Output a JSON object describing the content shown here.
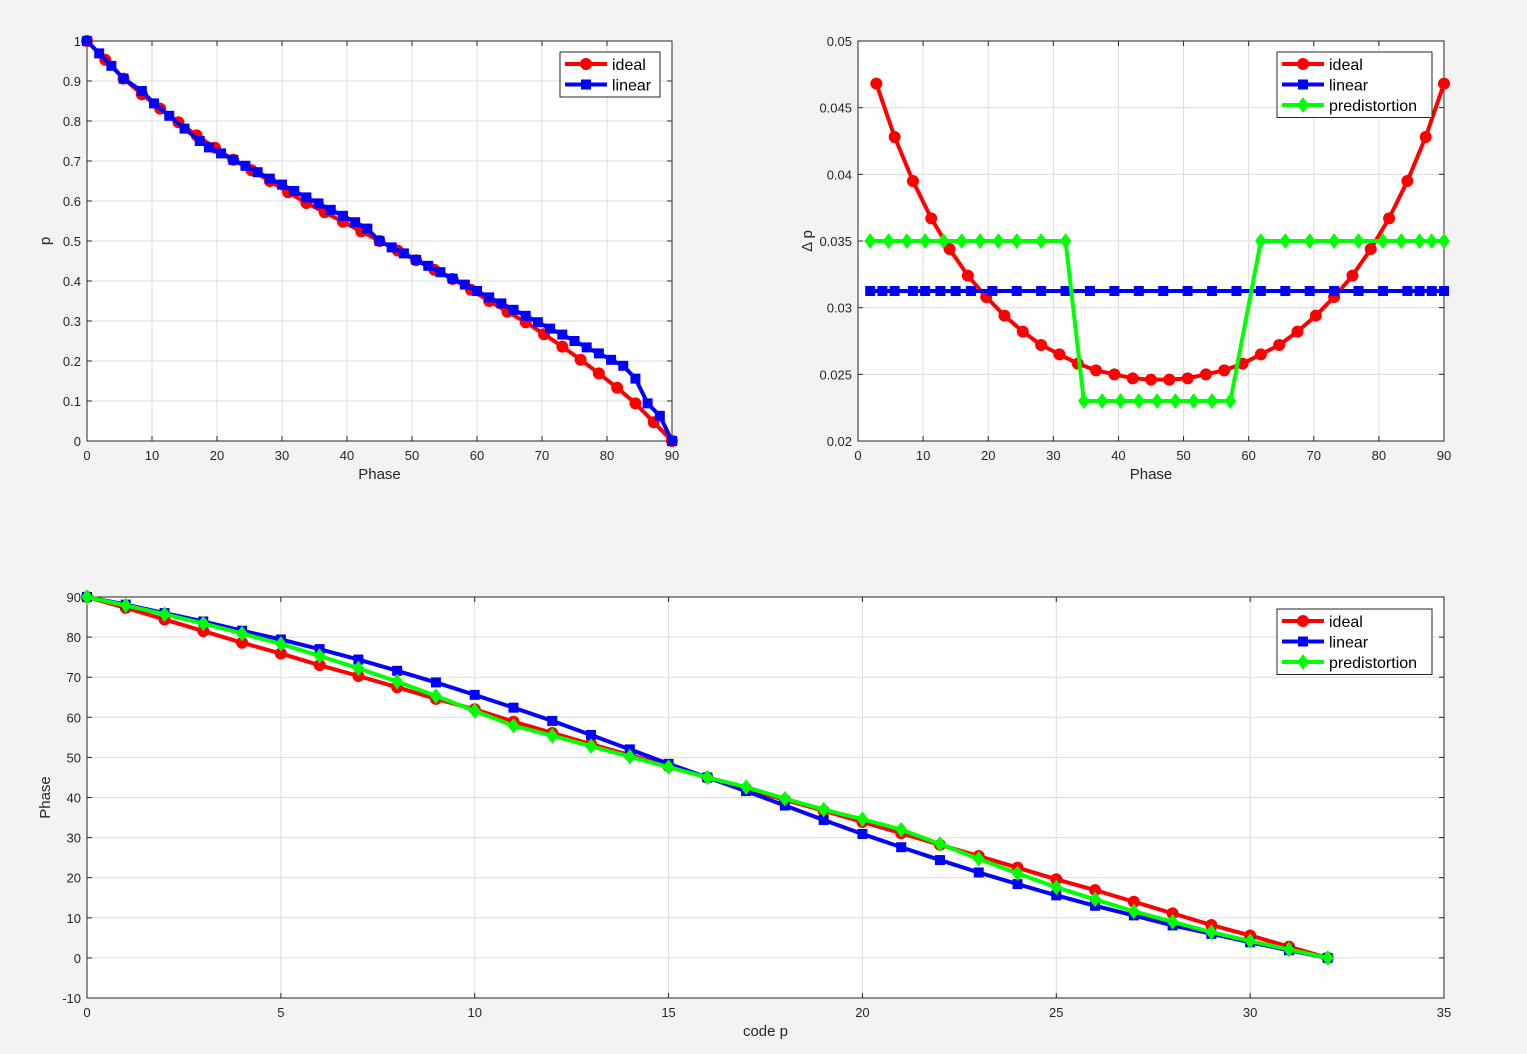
{
  "chart_data": [
    {
      "type": "line",
      "xlabel": "Phase",
      "ylabel": "p",
      "xlim": [
        0,
        90
      ],
      "ylim": [
        0,
        1
      ],
      "xticks": [
        0,
        10,
        20,
        30,
        40,
        50,
        60,
        70,
        80,
        90
      ],
      "yticks": [
        0,
        0.1,
        0.2,
        0.3,
        0.4,
        0.5,
        0.6,
        0.7,
        0.8,
        0.9,
        1
      ],
      "grid": true,
      "legend_position": "top-right",
      "series": [
        {
          "name": "ideal",
          "color": "#ff0000",
          "marker": "circle",
          "x": [
            0,
            2.8125,
            5.625,
            8.4375,
            11.25,
            14.0625,
            16.875,
            19.6875,
            22.5,
            25.3125,
            28.125,
            30.9375,
            33.75,
            36.5625,
            39.375,
            42.1875,
            45,
            47.8125,
            50.625,
            53.4375,
            56.25,
            59.0625,
            61.875,
            64.6875,
            67.5,
            70.3125,
            73.125,
            75.9375,
            78.75,
            81.5625,
            84.375,
            87.1875,
            90
          ],
          "y": [
            1,
            0.953,
            0.906,
            0.867,
            0.831,
            0.797,
            0.764,
            0.733,
            0.703,
            0.677,
            0.65,
            0.622,
            0.595,
            0.572,
            0.548,
            0.524,
            0.5,
            0.476,
            0.452,
            0.428,
            0.405,
            0.378,
            0.35,
            0.323,
            0.297,
            0.267,
            0.236,
            0.203,
            0.169,
            0.133,
            0.094,
            0.047,
            0
          ]
        },
        {
          "name": "linear",
          "color": "#0000ff",
          "marker": "square",
          "x": [
            0,
            1.875,
            3.75,
            5.625,
            8.4375,
            10.3125,
            12.6562,
            15.0,
            17.3437,
            18.75,
            20.625,
            22.5,
            24.375,
            26.25,
            28.125,
            30.0,
            31.875,
            33.75,
            35.625,
            37.5,
            39.375,
            41.25,
            43.125,
            45,
            46.875,
            48.75,
            50.625,
            52.5,
            54.375,
            56.25,
            58.125,
            60,
            61.875,
            63.75,
            65.625,
            67.5,
            69.375,
            71.25,
            73.125,
            75,
            76.875,
            78.75,
            80.625,
            82.5,
            84.375,
            86.25,
            88.125,
            90
          ],
          "y": [
            1,
            0.969,
            0.938,
            0.906,
            0.875,
            0.844,
            0.813,
            0.781,
            0.75,
            0.734,
            0.719,
            0.703,
            0.688,
            0.672,
            0.656,
            0.641,
            0.625,
            0.609,
            0.594,
            0.578,
            0.563,
            0.547,
            0.531,
            0.5,
            0.484,
            0.469,
            0.453,
            0.438,
            0.422,
            0.406,
            0.391,
            0.375,
            0.359,
            0.344,
            0.328,
            0.313,
            0.297,
            0.281,
            0.266,
            0.25,
            0.234,
            0.219,
            0.203,
            0.188,
            0.156,
            0.094,
            0.063,
            0
          ]
        }
      ]
    },
    {
      "type": "line",
      "xlabel": "Phase",
      "ylabel": "Δ  p",
      "xlim": [
        0,
        90
      ],
      "ylim": [
        0.02,
        0.05
      ],
      "xticks": [
        0,
        10,
        20,
        30,
        40,
        50,
        60,
        70,
        80,
        90
      ],
      "yticks": [
        0.02,
        0.025,
        0.03,
        0.035,
        0.04,
        0.045,
        0.05
      ],
      "grid": true,
      "legend_position": "top-right",
      "series": [
        {
          "name": "ideal",
          "color": "#ff0000",
          "marker": "circle",
          "x": [
            2.8125,
            5.625,
            8.4375,
            11.25,
            14.0625,
            16.875,
            19.6875,
            22.5,
            25.3125,
            28.125,
            30.9375,
            33.75,
            36.5625,
            39.375,
            42.1875,
            45,
            47.8125,
            50.625,
            53.4375,
            56.25,
            59.0625,
            61.875,
            64.6875,
            67.5,
            70.3125,
            73.125,
            75.9375,
            78.75,
            81.5625,
            84.375,
            87.1875,
            90
          ],
          "y": [
            0.0468,
            0.0428,
            0.0395,
            0.0367,
            0.0344,
            0.0324,
            0.0308,
            0.0294,
            0.0282,
            0.0272,
            0.0265,
            0.0258,
            0.0253,
            0.025,
            0.0247,
            0.0246,
            0.0246,
            0.0247,
            0.025,
            0.0253,
            0.0258,
            0.0265,
            0.0272,
            0.0282,
            0.0294,
            0.0308,
            0.0324,
            0.0344,
            0.0367,
            0.0395,
            0.0428,
            0.0468
          ]
        },
        {
          "name": "linear",
          "color": "#0000ff",
          "marker": "square",
          "x": [
            1.875,
            3.75,
            5.625,
            8.4375,
            10.3125,
            12.6562,
            15,
            17.3437,
            20.625,
            24.375,
            28.125,
            31.875,
            35.625,
            39.375,
            43.125,
            46.875,
            50.625,
            54.375,
            58.125,
            61.875,
            65.625,
            69.375,
            73.125,
            76.875,
            80.625,
            84.375,
            86.25,
            88.125,
            90
          ],
          "y": [
            0.03125,
            0.03125,
            0.03125,
            0.03125,
            0.03125,
            0.03125,
            0.03125,
            0.03125,
            0.03125,
            0.03125,
            0.03125,
            0.03125,
            0.03125,
            0.03125,
            0.03125,
            0.03125,
            0.03125,
            0.03125,
            0.03125,
            0.03125,
            0.03125,
            0.03125,
            0.03125,
            0.03125,
            0.03125,
            0.03125,
            0.03125,
            0.03125,
            0.03125
          ]
        },
        {
          "name": "predistortion",
          "color": "#00ff00",
          "marker": "diamond",
          "x": [
            1.875,
            4.6875,
            7.5,
            10.3125,
            13.125,
            15.9375,
            18.75,
            21.5625,
            24.375,
            28.125,
            31.875,
            34.6875,
            37.5,
            40.3125,
            43.125,
            45.9375,
            48.75,
            51.5625,
            54.375,
            57.1875,
            61.875,
            65.625,
            69.375,
            73.125,
            76.875,
            80.625,
            83.4375,
            86.25,
            88.125,
            90
          ],
          "y": [
            0.035,
            0.035,
            0.035,
            0.035,
            0.035,
            0.035,
            0.035,
            0.035,
            0.035,
            0.035,
            0.035,
            0.023,
            0.023,
            0.023,
            0.023,
            0.023,
            0.023,
            0.023,
            0.023,
            0.023,
            0.035,
            0.035,
            0.035,
            0.035,
            0.035,
            0.035,
            0.035,
            0.035,
            0.035,
            0.035
          ]
        }
      ]
    },
    {
      "type": "line",
      "xlabel": "code p",
      "ylabel": "Phase",
      "xlim": [
        0,
        35
      ],
      "ylim": [
        -10,
        90
      ],
      "xticks": [
        0,
        5,
        10,
        15,
        20,
        25,
        30,
        35
      ],
      "yticks": [
        -10,
        0,
        10,
        20,
        30,
        40,
        50,
        60,
        70,
        80,
        90
      ],
      "grid": true,
      "legend_position": "top-right",
      "series": [
        {
          "name": "ideal",
          "color": "#ff0000",
          "marker": "circle",
          "x": [
            0,
            1,
            2,
            3,
            4,
            5,
            6,
            7,
            8,
            9,
            10,
            11,
            12,
            13,
            14,
            15,
            16,
            17,
            18,
            19,
            20,
            21,
            22,
            23,
            24,
            25,
            26,
            27,
            28,
            29,
            30,
            31,
            32
          ],
          "y": [
            90,
            87.3,
            84.4,
            81.5,
            78.6,
            75.9,
            73.0,
            70.3,
            67.5,
            64.6,
            62.0,
            58.9,
            56.1,
            53.3,
            50.6,
            47.8,
            45,
            42.2,
            39.4,
            36.7,
            33.9,
            31.1,
            28.2,
            25.4,
            22.5,
            19.6,
            16.9,
            14.0,
            11.1,
            8.2,
            5.6,
            2.8,
            0
          ]
        },
        {
          "name": "linear",
          "color": "#0000ff",
          "marker": "square",
          "x": [
            0,
            1,
            2,
            3,
            4,
            5,
            6,
            7,
            8,
            9,
            10,
            11,
            12,
            13,
            14,
            15,
            16,
            17,
            18,
            19,
            20,
            21,
            22,
            23,
            24,
            25,
            26,
            27,
            28,
            29,
            30,
            31,
            32
          ],
          "y": [
            90,
            88.1,
            86.0,
            83.9,
            81.6,
            79.4,
            77.0,
            74.4,
            71.6,
            68.7,
            65.6,
            62.4,
            59.1,
            55.6,
            52.0,
            48.4,
            45,
            41.6,
            38.0,
            34.4,
            30.9,
            27.6,
            24.4,
            21.3,
            18.4,
            15.6,
            13.0,
            10.6,
            8.1,
            6.0,
            3.9,
            1.9,
            0
          ]
        },
        {
          "name": "predistortion",
          "color": "#00ff00",
          "marker": "diamond",
          "x": [
            0,
            1,
            2,
            3,
            4,
            5,
            6,
            7,
            8,
            9,
            10,
            11,
            12,
            13,
            14,
            15,
            16,
            17,
            18,
            19,
            20,
            21,
            22,
            23,
            24,
            25,
            26,
            27,
            28,
            29,
            30,
            31,
            32
          ],
          "y": [
            90,
            87.9,
            85.7,
            83.4,
            80.9,
            78.3,
            75.3,
            72.2,
            68.9,
            65.3,
            61.6,
            57.9,
            55.4,
            52.8,
            50.2,
            47.6,
            45,
            42.6,
            39.7,
            37.0,
            34.6,
            32.0,
            28.4,
            24.7,
            21.1,
            17.6,
            14.6,
            11.6,
            9.0,
            6.4,
            4.2,
            2.1,
            0
          ]
        }
      ]
    }
  ]
}
